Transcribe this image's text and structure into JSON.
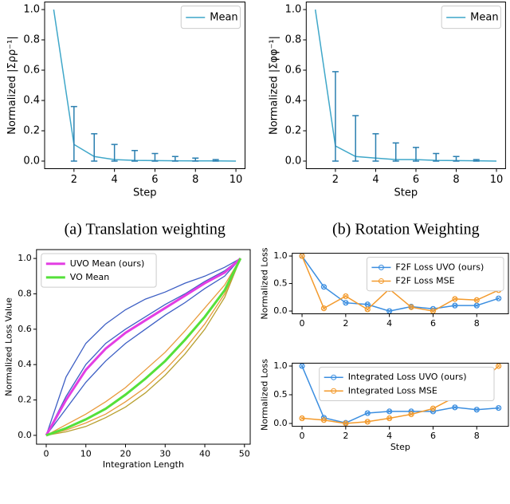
{
  "chart_data": [
    {
      "type": "line",
      "caption": "(a) Translation weighting",
      "xlabel": "Step",
      "ylabel": "Normalized |Σρρ⁻¹|",
      "x": [
        1,
        2,
        3,
        4,
        5,
        6,
        7,
        8,
        9,
        10
      ],
      "series": [
        {
          "name": "Mean",
          "color": "#3fa7c9",
          "values": [
            1.0,
            0.11,
            0.03,
            0.01,
            0.005,
            0.003,
            0.002,
            0.001,
            0.001,
            0.0
          ],
          "upper": [
            null,
            0.36,
            0.18,
            0.11,
            0.07,
            0.05,
            0.03,
            0.02,
            0.01,
            null
          ],
          "lower": [
            null,
            0.0,
            0.0,
            0.0,
            0.0,
            0.0,
            0.0,
            0.0,
            0.0,
            null
          ]
        }
      ],
      "xlim": [
        0.55,
        10.45
      ],
      "xticks": [
        2,
        4,
        6,
        8,
        10
      ],
      "ylim": [
        -0.05,
        1.05
      ],
      "yticks": [
        {
          "value": 0,
          "label": "0.0"
        },
        {
          "value": 0.2,
          "label": "0.2"
        },
        {
          "value": 0.4,
          "label": "0.4"
        },
        {
          "value": 0.6,
          "label": "0.6"
        },
        {
          "value": 0.8,
          "label": "0.8"
        },
        {
          "value": 1,
          "label": "1.0"
        }
      ],
      "legend": "upper right"
    },
    {
      "type": "line",
      "caption": "(b) Rotation Weighting",
      "xlabel": "Step",
      "ylabel": "Normalized |Σφφ⁻¹|",
      "x": [
        1,
        2,
        3,
        4,
        5,
        6,
        7,
        8,
        9,
        10
      ],
      "series": [
        {
          "name": "Mean",
          "color": "#3fa7c9",
          "values": [
            1.0,
            0.1,
            0.03,
            0.02,
            0.01,
            0.01,
            0.005,
            0.003,
            0.002,
            0.0
          ],
          "upper": [
            null,
            0.59,
            0.3,
            0.18,
            0.12,
            0.09,
            0.05,
            0.03,
            0.01,
            null
          ],
          "lower": [
            null,
            0.0,
            0.0,
            0.0,
            0.0,
            0.0,
            0.0,
            0.0,
            0.0,
            null
          ]
        }
      ],
      "xlim": [
        0.55,
        10.45
      ],
      "xticks": [
        2,
        4,
        6,
        8,
        10
      ],
      "ylim": [
        -0.05,
        1.05
      ],
      "yticks": [
        {
          "value": 0,
          "label": "0.0"
        },
        {
          "value": 0.2,
          "label": "0.2"
        },
        {
          "value": 0.4,
          "label": "0.4"
        },
        {
          "value": 0.6,
          "label": "0.6"
        },
        {
          "value": 0.8,
          "label": "0.8"
        },
        {
          "value": 1,
          "label": "1.0"
        }
      ],
      "legend": "upper right"
    },
    {
      "type": "line",
      "xlabel": "Integration Length",
      "ylabel": "Normalized Loss Value",
      "x": [
        0,
        5,
        10,
        15,
        20,
        25,
        30,
        35,
        40,
        45,
        49
      ],
      "series": [
        {
          "color": "#3d5fc4",
          "linewidth": 1.3,
          "values": [
            0,
            0.33,
            0.52,
            0.63,
            0.71,
            0.77,
            0.81,
            0.86,
            0.9,
            0.95,
            1.0
          ]
        },
        {
          "color": "#3d5fc4",
          "linewidth": 1.3,
          "values": [
            0,
            0.22,
            0.4,
            0.52,
            0.6,
            0.67,
            0.74,
            0.8,
            0.87,
            0.93,
            1.0
          ]
        },
        {
          "color": "#3d5fc4",
          "linewidth": 1.3,
          "values": [
            0,
            0.15,
            0.3,
            0.42,
            0.52,
            0.6,
            0.68,
            0.75,
            0.83,
            0.9,
            1.0
          ]
        },
        {
          "color": "#e89a3c",
          "linewidth": 1.3,
          "values": [
            0,
            0.06,
            0.12,
            0.19,
            0.27,
            0.37,
            0.47,
            0.59,
            0.72,
            0.85,
            1.0
          ]
        },
        {
          "color": "#e89a3c",
          "linewidth": 1.3,
          "values": [
            0,
            0.03,
            0.07,
            0.12,
            0.19,
            0.27,
            0.37,
            0.49,
            0.63,
            0.8,
            1.0
          ]
        },
        {
          "color": "#b8a030",
          "linewidth": 1.3,
          "values": [
            0,
            0.02,
            0.05,
            0.1,
            0.16,
            0.24,
            0.34,
            0.46,
            0.6,
            0.78,
            1.0
          ]
        },
        {
          "name": "UVO Mean (ours)",
          "color": "#e33ee3",
          "linewidth": 3,
          "values": [
            0,
            0.2,
            0.37,
            0.49,
            0.58,
            0.65,
            0.72,
            0.79,
            0.86,
            0.92,
            1.0
          ]
        },
        {
          "name": "VO Mean",
          "color": "#55e03a",
          "linewidth": 3,
          "values": [
            0,
            0.04,
            0.09,
            0.15,
            0.23,
            0.32,
            0.42,
            0.54,
            0.67,
            0.82,
            1.0
          ]
        }
      ],
      "xlim": [
        -2.45,
        51.45
      ],
      "xticks": [
        0,
        10,
        20,
        30,
        40,
        50
      ],
      "ylim": [
        -0.05,
        1.05
      ],
      "yticks": [
        {
          "value": 0,
          "label": "0.0"
        },
        {
          "value": 0.2,
          "label": "0.2"
        },
        {
          "value": 0.4,
          "label": "0.4"
        },
        {
          "value": 0.6,
          "label": "0.6"
        },
        {
          "value": 0.8,
          "label": "0.8"
        },
        {
          "value": 1,
          "label": "1.0"
        }
      ],
      "legend": "upper left"
    },
    {
      "type": "line",
      "ylabel": "Normalized Loss",
      "x": [
        0,
        1,
        2,
        3,
        4,
        5,
        6,
        7,
        8,
        9
      ],
      "series": [
        {
          "name": "F2F Loss UVO (ours)",
          "color": "#3b8ee0",
          "marker": "o",
          "values": [
            1.0,
            0.44,
            0.15,
            0.12,
            0.0,
            0.08,
            0.04,
            0.1,
            0.1,
            0.23
          ]
        },
        {
          "name": "F2F Loss MSE",
          "color": "#f39a2c",
          "marker": "o",
          "values": [
            1.0,
            0.05,
            0.27,
            0.03,
            0.4,
            0.07,
            0.0,
            0.22,
            0.2,
            0.38
          ]
        }
      ],
      "xlim": [
        -0.45,
        9.45
      ],
      "xticks": [
        0,
        2,
        4,
        6,
        8
      ],
      "ylim": [
        -0.05,
        1.05
      ],
      "yticks": [
        {
          "value": 0,
          "label": "0.0"
        },
        {
          "value": 0.5,
          "label": "0.5"
        },
        {
          "value": 1,
          "label": "1.0"
        }
      ],
      "legend": "upper right"
    },
    {
      "type": "line",
      "xlabel": "Step",
      "ylabel": "Normalized Loss",
      "x": [
        0,
        1,
        2,
        3,
        4,
        5,
        6,
        7,
        8,
        9
      ],
      "series": [
        {
          "name": "Integrated Loss UVO (ours)",
          "color": "#3b8ee0",
          "marker": "o",
          "values": [
            1.0,
            0.1,
            0.01,
            0.18,
            0.21,
            0.21,
            0.21,
            0.28,
            0.24,
            0.27
          ]
        },
        {
          "name": "Integrated Loss MSE",
          "color": "#f39a2c",
          "marker": "o",
          "values": [
            0.09,
            0.06,
            0.0,
            0.03,
            0.09,
            0.16,
            0.26,
            0.46,
            0.66,
            1.0
          ]
        }
      ],
      "xlim": [
        -0.45,
        9.45
      ],
      "xticks": [
        0,
        2,
        4,
        6,
        8
      ],
      "ylim": [
        -0.05,
        1.05
      ],
      "yticks": [
        {
          "value": 0,
          "label": "0.0"
        },
        {
          "value": 0.5,
          "label": "0.5"
        },
        {
          "value": 1,
          "label": "1.0"
        }
      ],
      "legend": "upper center"
    }
  ]
}
